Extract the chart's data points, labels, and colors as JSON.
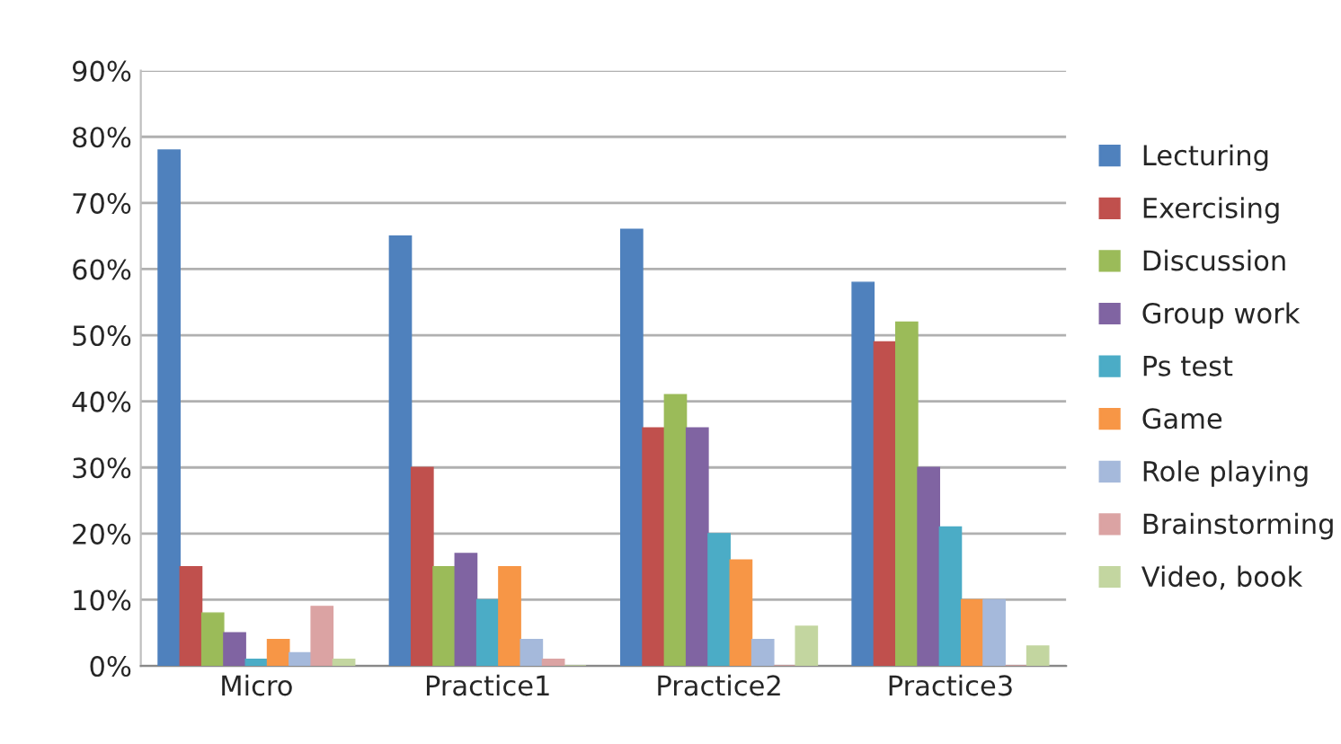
{
  "chart_data": {
    "type": "bar",
    "categories": [
      "Micro",
      "Practice1",
      "Practice2",
      "Practice3"
    ],
    "series": [
      {
        "name": "Lecturing",
        "color": "#4f81bd",
        "values": [
          78,
          65,
          66,
          58
        ]
      },
      {
        "name": "Exercising",
        "color": "#c0504d",
        "values": [
          15,
          30,
          36,
          49
        ]
      },
      {
        "name": "Discussion",
        "color": "#9bbb59",
        "values": [
          8,
          15,
          41,
          52
        ]
      },
      {
        "name": "Group work",
        "color": "#8064a2",
        "values": [
          5,
          17,
          36,
          30
        ]
      },
      {
        "name": "Ps test",
        "color": "#4bacc6",
        "values": [
          1,
          10,
          20,
          21
        ]
      },
      {
        "name": "Game",
        "color": "#f79646",
        "values": [
          4,
          15,
          16,
          10
        ]
      },
      {
        "name": "Role playing",
        "color": "#a5b9db",
        "values": [
          2,
          4,
          4,
          10
        ]
      },
      {
        "name": "Brainstorming",
        "color": "#dba3a3",
        "values": [
          9,
          1,
          0,
          0
        ]
      },
      {
        "name": "Video, book",
        "color": "#c3d6a0",
        "values": [
          1,
          0,
          6,
          3
        ]
      }
    ],
    "ylim": [
      0,
      90
    ],
    "yticks": [
      {
        "value": 0,
        "label": "0%"
      },
      {
        "value": 10,
        "label": "10%"
      },
      {
        "value": 20,
        "label": "20%"
      },
      {
        "value": 30,
        "label": "30%"
      },
      {
        "value": 40,
        "label": "40%"
      },
      {
        "value": 50,
        "label": "50%"
      },
      {
        "value": 60,
        "label": "60%"
      },
      {
        "value": 70,
        "label": "70%"
      },
      {
        "value": 80,
        "label": "80%"
      },
      {
        "value": 90,
        "label": "90%"
      }
    ],
    "grid": "y",
    "legend": "right"
  }
}
